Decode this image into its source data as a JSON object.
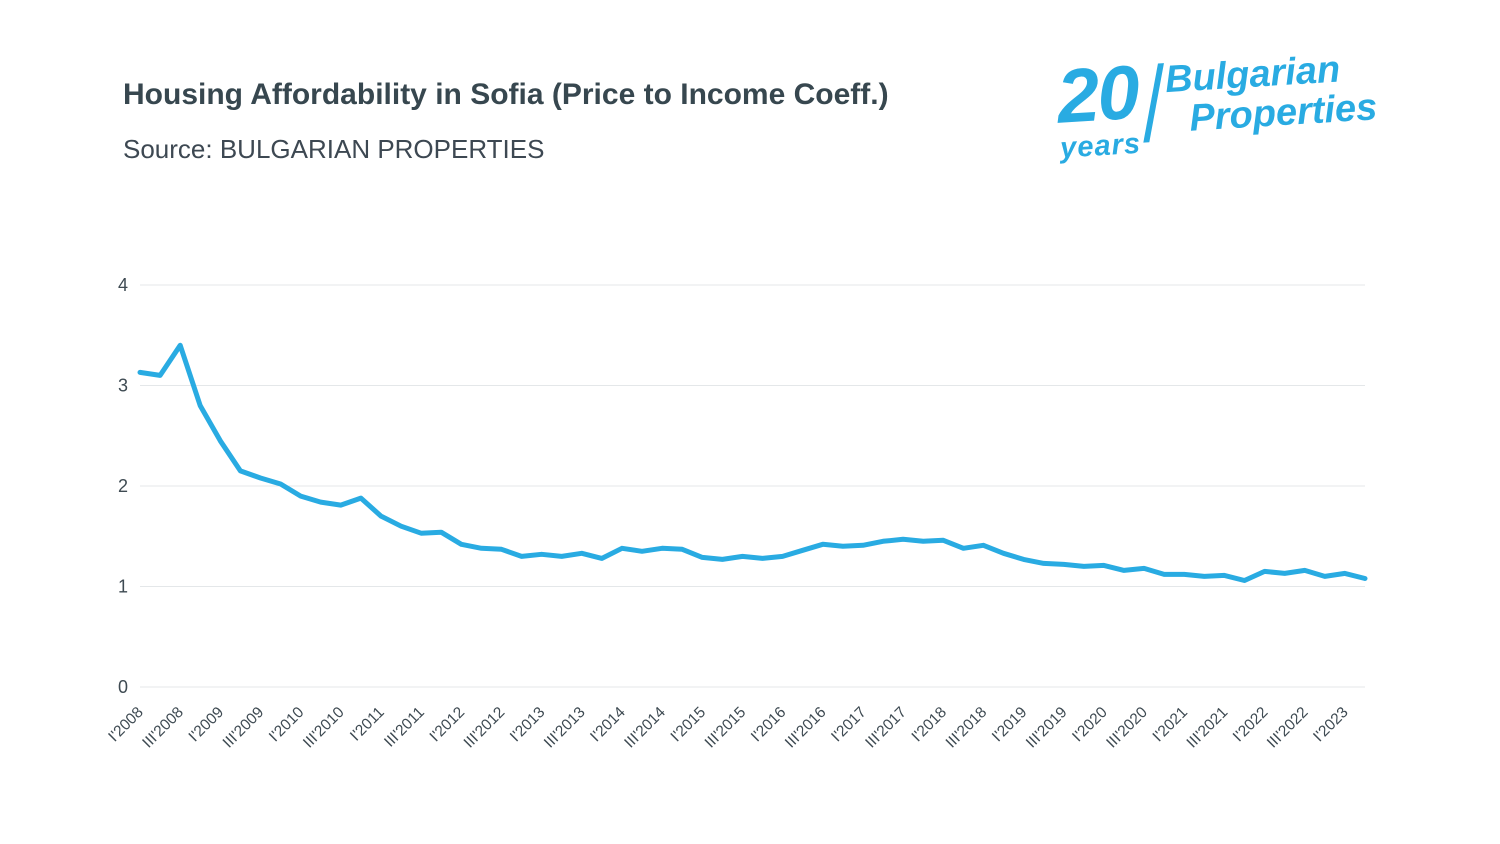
{
  "header": {
    "title": "Housing Affordability in Sofia (Price to Income Coeff.)",
    "source": "Source: BULGARIAN PROPERTIES"
  },
  "logo": {
    "number": "20",
    "years": "years",
    "brand_line1": "Bulgarian",
    "brand_line2": "Properties",
    "color": "#29ABE2"
  },
  "chart_data": {
    "type": "line",
    "title": "Housing Affordability in Sofia (Price to Income Coeff.)",
    "xlabel": "",
    "ylabel": "",
    "ylim": [
      0,
      4
    ],
    "yticks": [
      0,
      1,
      2,
      3,
      4
    ],
    "grid": true,
    "legend": "none",
    "line_color": "#29ABE2",
    "axis_text_color": "#3E4A52",
    "grid_color": "#E4E7E9",
    "x_ticks": [
      "I'2008",
      "III'2008",
      "I'2009",
      "III'2009",
      "I'2010",
      "III'2010",
      "I'2011",
      "III'2011",
      "I'2012",
      "III'2012",
      "I'2013",
      "III'2013",
      "I'2014",
      "III'2014",
      "I'2015",
      "III'2015",
      "I'2016",
      "III'2016",
      "I'2017",
      "III'2017",
      "I'2018",
      "III'2018",
      "I'2019",
      "III'2019",
      "I'2020",
      "III'2020",
      "I'2021",
      "III'2021",
      "I'2022",
      "III'2022",
      "I'2023"
    ],
    "quarters": [
      "I'2008",
      "II'2008",
      "III'2008",
      "IV'2008",
      "I'2009",
      "II'2009",
      "III'2009",
      "IV'2009",
      "I'2010",
      "II'2010",
      "III'2010",
      "IV'2010",
      "I'2011",
      "II'2011",
      "III'2011",
      "IV'2011",
      "I'2012",
      "II'2012",
      "III'2012",
      "IV'2012",
      "I'2013",
      "II'2013",
      "III'2013",
      "IV'2013",
      "I'2014",
      "II'2014",
      "III'2014",
      "IV'2014",
      "I'2015",
      "II'2015",
      "III'2015",
      "IV'2015",
      "I'2016",
      "II'2016",
      "III'2016",
      "IV'2016",
      "I'2017",
      "II'2017",
      "III'2017",
      "IV'2017",
      "I'2018",
      "II'2018",
      "III'2018",
      "IV'2018",
      "I'2019",
      "II'2019",
      "III'2019",
      "IV'2019",
      "I'2020",
      "II'2020",
      "III'2020",
      "IV'2020",
      "I'2021",
      "II'2021",
      "III'2021",
      "IV'2021",
      "I'2022",
      "II'2022",
      "III'2022",
      "IV'2022",
      "I'2023",
      "II'2023"
    ],
    "values": [
      3.13,
      3.1,
      3.4,
      2.8,
      2.45,
      2.15,
      2.08,
      2.02,
      1.9,
      1.84,
      1.81,
      1.88,
      1.7,
      1.6,
      1.53,
      1.54,
      1.42,
      1.38,
      1.37,
      1.3,
      1.32,
      1.3,
      1.33,
      1.28,
      1.38,
      1.35,
      1.38,
      1.37,
      1.29,
      1.27,
      1.3,
      1.28,
      1.3,
      1.36,
      1.42,
      1.4,
      1.41,
      1.45,
      1.47,
      1.45,
      1.46,
      1.38,
      1.41,
      1.33,
      1.27,
      1.23,
      1.22,
      1.2,
      1.21,
      1.16,
      1.18,
      1.12,
      1.12,
      1.1,
      1.11,
      1.06,
      1.15,
      1.13,
      1.16,
      1.1,
      1.13,
      1.08
    ]
  }
}
